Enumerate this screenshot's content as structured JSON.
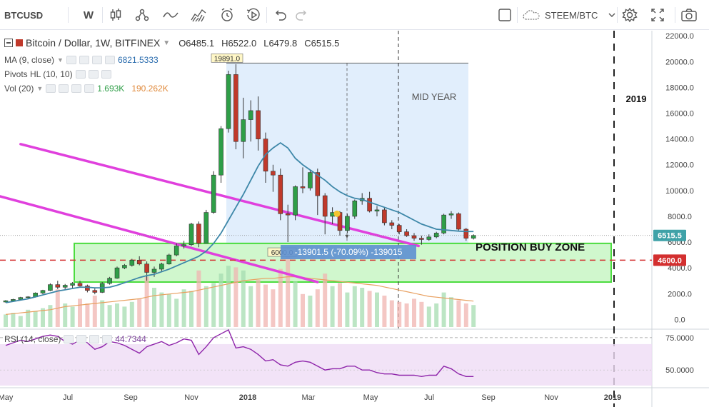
{
  "toolbar": {
    "symbol": "BTCUSD",
    "interval": "W",
    "compare_symbol": "STEEM/BTC",
    "icons": [
      "bar-style-icon",
      "indicators-icon",
      "line-tool-icon",
      "area-icon",
      "alert-icon",
      "replay-icon",
      "undo-icon",
      "redo-icon",
      "square-icon",
      "cloud-icon",
      "settings-icon",
      "fullscreen-icon",
      "camera-icon"
    ]
  },
  "legend": {
    "title": "Bitcoin / Dollar, 1W, BITFINEX",
    "open": "O6485.1",
    "high": "H6522.0",
    "low": "L6479.8",
    "close": "C6515.5",
    "ma_label": "MA (9, close)",
    "ma_value": "6821.5333",
    "pivots_label": "Pivots HL (10, 10)",
    "vol_label": "Vol (20)",
    "vol_value1": "1.693K",
    "vol_value2": "190.262K",
    "rsi_label": "RSI (14, close)",
    "rsi_value": "44.7344"
  },
  "chart_data": [
    {
      "type": "candlestick",
      "title": "Bitcoin / Dollar, 1W, BITFINEX",
      "ylim": [
        -700,
        22400
      ],
      "price_axis_ticks": [
        "22000.0",
        "20000.0",
        "18000.0",
        "16000.0",
        "14000.0",
        "12000.0",
        "10000.0",
        "8000.0",
        "6000.0",
        "4000.0",
        "2000.0",
        "0.0"
      ],
      "time_axis_labels": [
        "May",
        "Jul",
        "Sep",
        "Nov",
        "2018",
        "Mar",
        "May",
        "Jul",
        "Sep",
        "Nov",
        "2019"
      ],
      "candles_ohlc": [
        [
          1350,
          1500,
          1300,
          1450
        ],
        [
          1450,
          1600,
          1400,
          1550
        ],
        [
          1550,
          1750,
          1500,
          1700
        ],
        [
          1700,
          1800,
          1600,
          1750
        ],
        [
          1750,
          2100,
          1700,
          2050
        ],
        [
          2050,
          2300,
          1950,
          2250
        ],
        [
          2250,
          2800,
          2200,
          2700
        ],
        [
          2700,
          3000,
          2350,
          2500
        ],
        [
          2500,
          2750,
          2300,
          2650
        ],
        [
          2650,
          2900,
          2400,
          2800
        ],
        [
          2800,
          3000,
          2550,
          2600
        ],
        [
          2600,
          2700,
          2100,
          2250
        ],
        [
          2250,
          2400,
          1950,
          2100
        ],
        [
          2100,
          2900,
          2050,
          2800
        ],
        [
          2800,
          3300,
          2700,
          3200
        ],
        [
          3200,
          4100,
          3150,
          4000
        ],
        [
          4000,
          4300,
          3900,
          4200
        ],
        [
          4200,
          4700,
          4100,
          4600
        ],
        [
          4600,
          4900,
          4200,
          4300
        ],
        [
          4300,
          4500,
          3000,
          3650
        ],
        [
          3650,
          4100,
          3300,
          3900
        ],
        [
          3900,
          4400,
          3700,
          4300
        ],
        [
          4300,
          5100,
          4250,
          5000
        ],
        [
          5000,
          5900,
          4900,
          5700
        ],
        [
          5700,
          6100,
          5500,
          5800
        ],
        [
          5800,
          7500,
          5700,
          7400
        ],
        [
          7400,
          7600,
          5600,
          5900
        ],
        [
          5900,
          8500,
          5900,
          8300
        ],
        [
          8300,
          11500,
          8200,
          11200
        ],
        [
          11200,
          15000,
          10600,
          14800
        ],
        [
          14800,
          19300,
          14500,
          19000
        ],
        [
          19000,
          19800,
          13200,
          13800
        ],
        [
          13800,
          17200,
          12500,
          15500
        ],
        [
          15500,
          17000,
          13800,
          16200
        ],
        [
          16200,
          17300,
          13100,
          14000
        ],
        [
          14000,
          14500,
          10600,
          11500
        ],
        [
          11500,
          12000,
          9900,
          11200
        ],
        [
          11200,
          11700,
          7700,
          8200
        ],
        [
          8200,
          8900,
          6000,
          8100
        ],
        [
          8100,
          10400,
          7700,
          10300
        ],
        [
          10300,
          11800,
          9800,
          10200
        ],
        [
          10200,
          11600,
          10000,
          11400
        ],
        [
          11400,
          11700,
          8100,
          9600
        ],
        [
          9600,
          9800,
          6600,
          8000
        ],
        [
          8000,
          8700,
          7400,
          8300
        ],
        [
          8300,
          8400,
          6500,
          6900
        ],
        [
          6900,
          8200,
          6700,
          8000
        ],
        [
          8000,
          9300,
          7800,
          9200
        ],
        [
          9200,
          9800,
          8900,
          9400
        ],
        [
          9400,
          9900,
          8300,
          8400
        ],
        [
          8400,
          8800,
          8000,
          8500
        ],
        [
          8500,
          8700,
          7300,
          7500
        ],
        [
          7500,
          7700,
          7000,
          7300
        ],
        [
          7300,
          7400,
          6600,
          6800
        ],
        [
          6800,
          7000,
          6400,
          6500
        ],
        [
          6500,
          6700,
          6100,
          6300
        ],
        [
          6300,
          6500,
          5800,
          6200
        ],
        [
          6200,
          6600,
          6100,
          6400
        ],
        [
          6400,
          6800,
          6300,
          6700
        ],
        [
          6700,
          8200,
          6600,
          8100
        ],
        [
          8100,
          8400,
          7800,
          8200
        ],
        [
          8200,
          8300,
          6900,
          7000
        ],
        [
          7000,
          7100,
          6100,
          6300
        ],
        [
          6300,
          6600,
          6200,
          6515
        ]
      ],
      "ma9_series": [
        1300,
        1400,
        1500,
        1600,
        1750,
        1900,
        2050,
        2200,
        2300,
        2400,
        2500,
        2500,
        2450,
        2450,
        2500,
        2650,
        2850,
        3050,
        3250,
        3400,
        3500,
        3700,
        3900,
        4150,
        4400,
        4650,
        4900,
        5300,
        5900,
        6700,
        7700,
        8700,
        9700,
        10800,
        11900,
        12800,
        13300,
        13700,
        13300,
        12500,
        12000,
        11600,
        11200,
        10800,
        10300,
        9900,
        9600,
        9400,
        9300,
        9100,
        8900,
        8700,
        8500,
        8300,
        8000,
        7700,
        7400,
        7200,
        7000,
        6950,
        6900,
        6850,
        6820,
        6821
      ],
      "volume_scale_max": 5000,
      "volume": [
        800,
        900,
        700,
        1100,
        1000,
        1200,
        1400,
        2400,
        1500,
        1300,
        1800,
        1500,
        2000,
        1700,
        1400,
        1500,
        1300,
        1600,
        1800,
        3200,
        2500,
        2200,
        2100,
        1800,
        2400,
        2300,
        3600,
        2600,
        2800,
        3400,
        3900,
        3800,
        3600,
        2600,
        3000,
        2700,
        2400,
        3700,
        4500,
        2900,
        2100,
        2000,
        2400,
        3400,
        2600,
        2800,
        2200,
        2600,
        2500,
        2300,
        2200,
        2000,
        1700,
        1600,
        1500,
        1800,
        1600,
        1300,
        1500,
        2200,
        1900,
        1700,
        1500,
        1400
      ],
      "volume_ma_series": [
        800,
        850,
        900,
        950,
        1000,
        1050,
        1100,
        1200,
        1300,
        1350,
        1400,
        1450,
        1500,
        1550,
        1600,
        1650,
        1700,
        1750,
        1800,
        1900,
        2000,
        2050,
        2100,
        2150,
        2200,
        2250,
        2350,
        2450,
        2550,
        2650,
        2750,
        2850,
        2950,
        3000,
        3050,
        3100,
        3100,
        3150,
        3200,
        3200,
        3150,
        3100,
        3050,
        3000,
        2950,
        2900,
        2850,
        2800,
        2750,
        2700,
        2650,
        2550,
        2450,
        2350,
        2250,
        2150,
        2050,
        1950,
        1900,
        1850,
        1800,
        1750,
        1700,
        1650
      ],
      "annotations": {
        "high_label": "19891.0",
        "low_label": "6000.0",
        "measure_label": "-13901.5 (-70.09%) -139015",
        "mid_year_label": "MID YEAR",
        "year_label": "2019",
        "buy_zone_label": "POSITION BUY ZONE",
        "buy_zone_range": [
          2900,
          5900
        ],
        "current_price_label": "6515.5",
        "support_label": "4600.0",
        "support_level": 4600,
        "channel_upper": [
          [
            0.5,
            13600
          ],
          [
            13.9,
            5700
          ]
        ],
        "channel_lower": [
          [
            -2.2,
            10800
          ],
          [
            10.5,
            2900
          ]
        ]
      }
    },
    {
      "type": "line",
      "title": "RSI (14, close)",
      "ylim": [
        38,
        81
      ],
      "axis_ticks": [
        "75.0000",
        "50.0000"
      ],
      "band": [
        30,
        70
      ],
      "series": [
        {
          "name": "RSI",
          "values": [
            69,
            71,
            73,
            72,
            74,
            76,
            77,
            76,
            72,
            70,
            73,
            71,
            66,
            68,
            72,
            71,
            69,
            66,
            63,
            68,
            70,
            72,
            69,
            71,
            74,
            73,
            62,
            68,
            75,
            78,
            81,
            67,
            68,
            66,
            62,
            57,
            58,
            54,
            53,
            56,
            57,
            56,
            53,
            50,
            51,
            51,
            53,
            53,
            50,
            50,
            48,
            47,
            47,
            46,
            46,
            46,
            45,
            46,
            46,
            53,
            51,
            47,
            45,
            45
          ]
        }
      ]
    }
  ],
  "colors": {
    "up": "#2e9e47",
    "down": "#c0392b",
    "ma": "#3d87a8",
    "channel": "#e040dd",
    "zone_fill": "#ccf7c8",
    "zone_border": "#38d92b",
    "rect_fill": "#dcebfb",
    "support": "#d32f2f",
    "rsi": "#8e24aa",
    "rsi_band": "#efdcf5",
    "measure_box": "#5d8fd1",
    "price_tag": "#3fa2a8"
  }
}
